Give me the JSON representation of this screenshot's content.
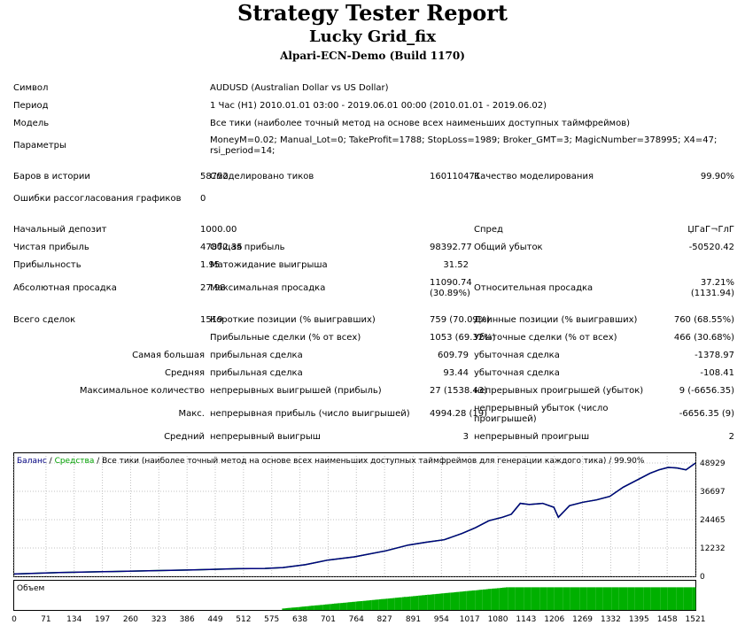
{
  "header": {
    "title": "Strategy Tester Report",
    "expert": "Lucky Grid_fix",
    "server": "Alpari-ECN-Demo (Build 1170)"
  },
  "report": {
    "symbol": {
      "label": "Символ",
      "value": "AUDUSD (Australian Dollar vs US Dollar)"
    },
    "period": {
      "label": "Период",
      "value": "1 Час (H1) 2010.01.01 03:00 - 2019.06.01 00:00 (2010.01.01 - 2019.06.02)"
    },
    "model": {
      "label": "Модель",
      "value": "Все тики (наиболее точный метод на основе всех наименьших доступных таймфреймов)"
    },
    "params": {
      "label": "Параметры",
      "value": "MoneyM=0.02; Manual_Lot=0; TakeProfit=1788; StopLoss=1989; Broker_GMT=3; MagicNumber=378995; X4=47; rsi_period=14;"
    },
    "bars": {
      "label": "Баров в истории",
      "value": "58752"
    },
    "ticks": {
      "label": "Смоделировано тиков",
      "value": "160110471"
    },
    "quality": {
      "label": "Качество моделирования",
      "value": "99.90%"
    },
    "mismatch": {
      "label": "Ошибки рассогласования графиков",
      "value": "0"
    },
    "deposit": {
      "label": "Начальный депозит",
      "value": "1000.00"
    },
    "spread": {
      "label": "Спред",
      "value": "ЏГаГ¬ГлГ"
    },
    "net_profit": {
      "label": "Чистая прибыль",
      "value": "47872.35"
    },
    "gross_profit": {
      "label": "Общая прибыль",
      "value": "98392.77"
    },
    "gross_loss": {
      "label": "Общий убыток",
      "value": "-50520.42"
    },
    "profit_factor": {
      "label": "Прибыльность",
      "value": "1.95"
    },
    "expected_payoff": {
      "label": "Матожидание выигрыша",
      "value": "31.52"
    },
    "abs_dd": {
      "label": "Абсолютная просадка",
      "value": "27.98"
    },
    "max_dd": {
      "label": "Максимальная просадка",
      "value1": "11090.74",
      "value2": "(30.89%)"
    },
    "rel_dd": {
      "label": "Относительная просадка",
      "value1": "37.21%",
      "value2": "(1131.94)"
    },
    "total_trades": {
      "label": "Всего сделок",
      "value": "1519"
    },
    "short_pos": {
      "label": "Короткие позиции (% выигравших)",
      "value": "759 (70.09%)"
    },
    "long_pos": {
      "label": "Длинные позиции (% выигравших)",
      "value": "760 (68.55%)"
    },
    "profit_trades": {
      "label": "Прибыльные сделки (% от всех)",
      "value": "1053 (69.32%)"
    },
    "loss_trades": {
      "label": "Убыточные сделки (% от всех)",
      "value": "466 (30.68%)"
    },
    "largest": {
      "label": "Самая большая",
      "profit_label": "прибыльная сделка",
      "profit": "609.79",
      "loss_label": "убыточная сделка",
      "loss": "-1378.97"
    },
    "average": {
      "label": "Средняя",
      "profit_label": "прибыльная сделка",
      "profit": "93.44",
      "loss_label": "убыточная сделка",
      "loss": "-108.41"
    },
    "max_consec": {
      "label": "Максимальное количество",
      "win_label": "непрерывных выигрышей (прибыль)",
      "win": "27 (1538.43)",
      "loss_label": "непрерывных проигрышей (убыток)",
      "loss": "9 (-6656.35)"
    },
    "max_consec2": {
      "label": "Макс.",
      "win_label": "непрерывная прибыль (число выигрышей)",
      "win": "4994.28 (19)",
      "loss_label": "непрерывный убыток (число проигрышей)",
      "loss": "-6656.35 (9)"
    },
    "avg_consec": {
      "label": "Средний",
      "win_label": "непрерывный выигрыш",
      "win": "3",
      "loss_label": "непрерывный проигрыш",
      "loss": "2"
    }
  },
  "chart_data": {
    "type": "line",
    "legend": {
      "balance": "Баланс",
      "sep1": " / ",
      "equity": "Средства",
      "sep2": " / ",
      "model": "Все тики (наиболее точный метод на основе всех наименьших доступных таймфреймов для генерации каждого тика)",
      "sep3": " / ",
      "quality": "99.90%"
    },
    "volume_label": "Объем",
    "x_ticks": [
      0,
      71,
      134,
      197,
      260,
      323,
      386,
      449,
      512,
      575,
      638,
      701,
      764,
      827,
      891,
      954,
      1017,
      1080,
      1143,
      1206,
      1269,
      1332,
      1395,
      1458,
      1521
    ],
    "y_ticks": [
      0,
      12232,
      24465,
      36697,
      48929
    ],
    "xlim": [
      0,
      1521
    ],
    "ylim": [
      0,
      48929
    ],
    "colors": {
      "balance": "#000080",
      "equity": "#00a000",
      "volume": "#00b000",
      "grid": "#c0c0c0"
    },
    "series": [
      {
        "name": "Баланс",
        "x": [
          0,
          100,
          200,
          300,
          400,
          500,
          560,
          600,
          650,
          700,
          760,
          830,
          880,
          920,
          960,
          1000,
          1030,
          1060,
          1090,
          1110,
          1130,
          1150,
          1180,
          1205,
          1215,
          1240,
          1270,
          1300,
          1330,
          1360,
          1390,
          1420,
          1440,
          1460,
          1480,
          1500,
          1521
        ],
        "y": [
          1000,
          1600,
          2000,
          2400,
          2800,
          3300,
          3400,
          3800,
          5000,
          7000,
          8400,
          11000,
          13500,
          14700,
          15800,
          18500,
          21000,
          24000,
          25500,
          26800,
          31500,
          31000,
          31500,
          29800,
          25500,
          30500,
          32000,
          33000,
          34500,
          38500,
          41500,
          44500,
          46000,
          47000,
          46800,
          46000,
          48900
        ]
      }
    ]
  }
}
